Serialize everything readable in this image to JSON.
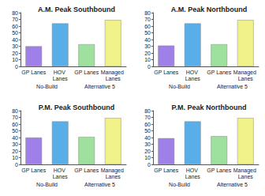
{
  "chart_data": [
    {
      "type": "bar",
      "title": "A.M. Peak Southbound",
      "categories": [
        "GP Lanes",
        "HOV Lanes",
        "GP Lanes",
        "Managed Lanes"
      ],
      "group_labels": [
        "No-Build",
        "Alternative 5"
      ],
      "values": [
        30,
        64,
        33,
        69
      ],
      "colors": [
        "#9f7fe8",
        "#5aaee8",
        "#9ee09e",
        "#f2f28a"
      ],
      "ylim": [
        0,
        80
      ],
      "yticks": [
        0,
        10,
        20,
        30,
        40,
        50,
        60,
        70,
        80
      ],
      "grid": false
    },
    {
      "type": "bar",
      "title": "A.M. Peak Northbound",
      "categories": [
        "GP Lanes",
        "HOV Lanes",
        "GP Lanes",
        "Managed Lanes"
      ],
      "group_labels": [
        "No-Build",
        "Alternative 5"
      ],
      "values": [
        31,
        64,
        33,
        69
      ],
      "colors": [
        "#9f7fe8",
        "#5aaee8",
        "#9ee09e",
        "#f2f28a"
      ],
      "ylim": [
        0,
        80
      ],
      "yticks": [
        0,
        10,
        20,
        30,
        40,
        50,
        60,
        70,
        80
      ],
      "grid": false
    },
    {
      "type": "bar",
      "title": "P.M. Peak Southbound",
      "categories": [
        "GP Lanes",
        "HOV Lanes",
        "GP Lanes",
        "Managed Lanes"
      ],
      "group_labels": [
        "No-Build",
        "Alternative 5"
      ],
      "values": [
        40,
        64,
        41,
        69
      ],
      "colors": [
        "#9f7fe8",
        "#5aaee8",
        "#9ee09e",
        "#f2f28a"
      ],
      "ylim": [
        0,
        80
      ],
      "yticks": [
        0,
        10,
        20,
        30,
        40,
        50,
        60,
        70,
        80
      ],
      "grid": false
    },
    {
      "type": "bar",
      "title": "P.M. Peak Northbound",
      "categories": [
        "GP Lanes",
        "HOV Lanes",
        "GP Lanes",
        "Managed Lanes"
      ],
      "group_labels": [
        "No-Build",
        "Alternative 5"
      ],
      "values": [
        39,
        64,
        42,
        69
      ],
      "colors": [
        "#9f7fe8",
        "#5aaee8",
        "#9ee09e",
        "#f2f28a"
      ],
      "ylim": [
        0,
        80
      ],
      "yticks": [
        0,
        10,
        20,
        30,
        40,
        50,
        60,
        70,
        80
      ],
      "grid": false
    }
  ]
}
